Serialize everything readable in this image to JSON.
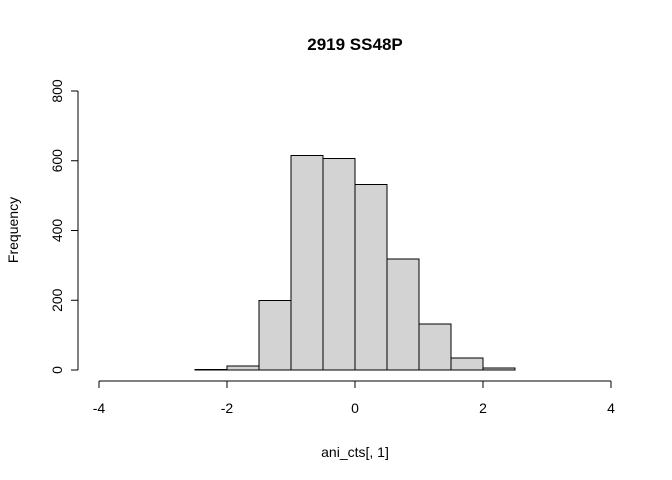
{
  "chart_data": {
    "type": "bar",
    "title": "2919 SS48P",
    "xlabel": "ani_cts[, 1]",
    "ylabel": "Frequency",
    "xlim": [
      -4,
      4
    ],
    "ylim": [
      0,
      800
    ],
    "x_ticks": [
      "-4",
      "-2",
      "0",
      "2",
      "4"
    ],
    "y_ticks": [
      "0",
      "200",
      "400",
      "600",
      "800"
    ],
    "bins": [
      {
        "x0": -2.5,
        "x1": -2.0,
        "count": 1
      },
      {
        "x0": -2.0,
        "x1": -1.5,
        "count": 12
      },
      {
        "x0": -1.5,
        "x1": -1.0,
        "count": 200
      },
      {
        "x0": -1.0,
        "x1": -0.5,
        "count": 615
      },
      {
        "x0": -0.5,
        "x1": 0.0,
        "count": 606
      },
      {
        "x0": 0.0,
        "x1": 0.5,
        "count": 532
      },
      {
        "x0": 0.5,
        "x1": 1.0,
        "count": 318
      },
      {
        "x0": 1.0,
        "x1": 1.5,
        "count": 132
      },
      {
        "x0": 1.5,
        "x1": 2.0,
        "count": 35
      },
      {
        "x0": 2.0,
        "x1": 2.5,
        "count": 6
      }
    ],
    "bar_fill": "#d3d3d3",
    "bar_stroke": "#000000",
    "grid": false,
    "legend": "none"
  }
}
